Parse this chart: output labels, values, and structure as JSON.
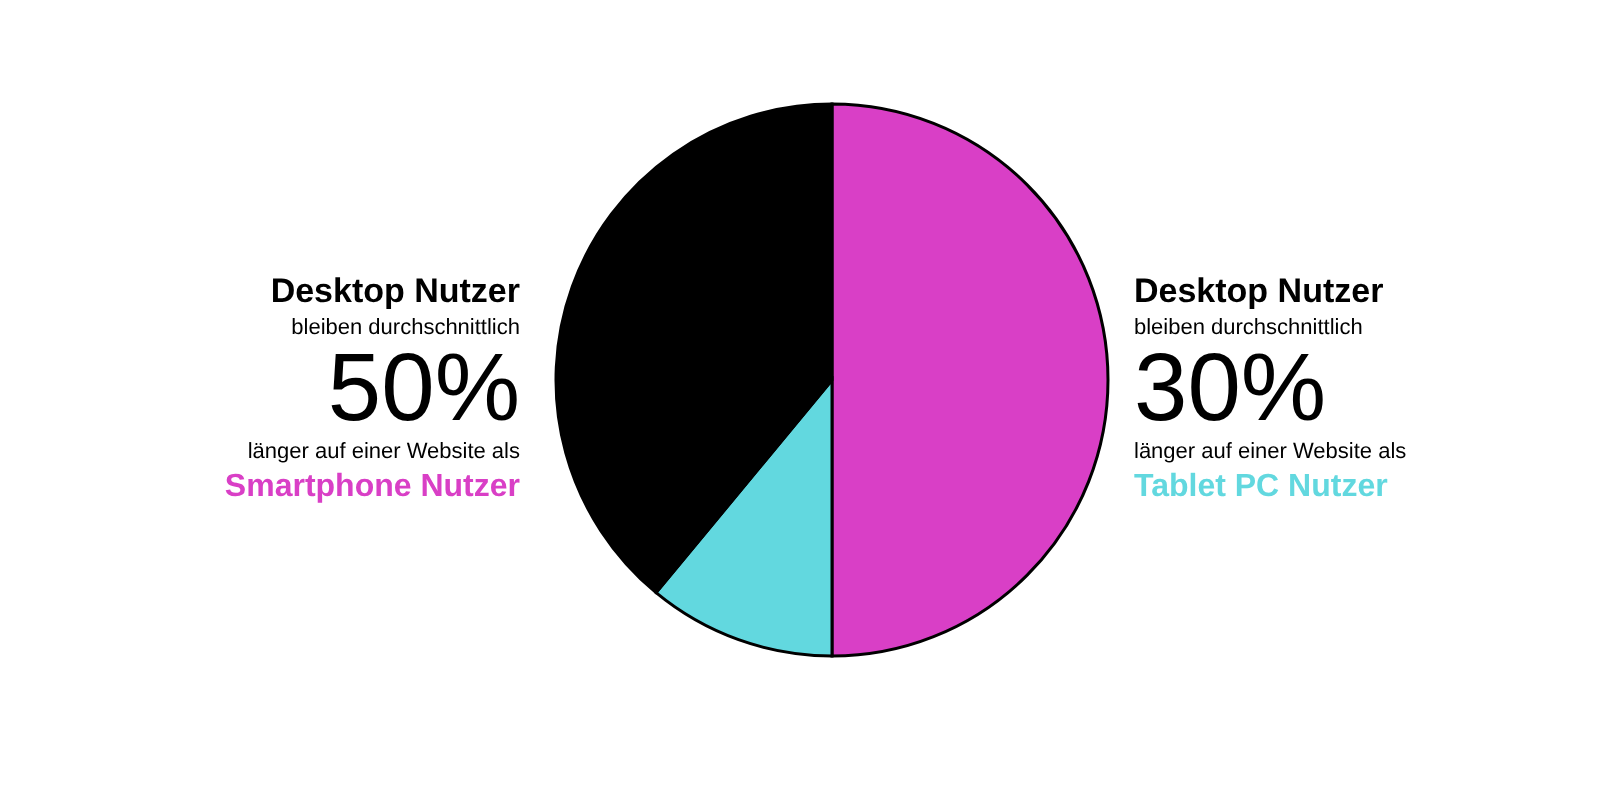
{
  "chart_data": {
    "type": "pie",
    "categories": [
      null,
      null,
      null
    ],
    "values": [
      50,
      11,
      39
    ],
    "colors": [
      "#d93fc6",
      "#62d8df",
      "#000000"
    ],
    "annotations": [
      "Desktop Nutzer",
      "bleiben durchschnittlich",
      "50%",
      "länger auf einer Website als",
      "Smartphone Nutzer",
      "Desktop Nutzer",
      "bleiben durchschnittlich",
      "30%",
      "länger auf einer Website als",
      "Tablet PC Nutzer"
    ]
  }
}
